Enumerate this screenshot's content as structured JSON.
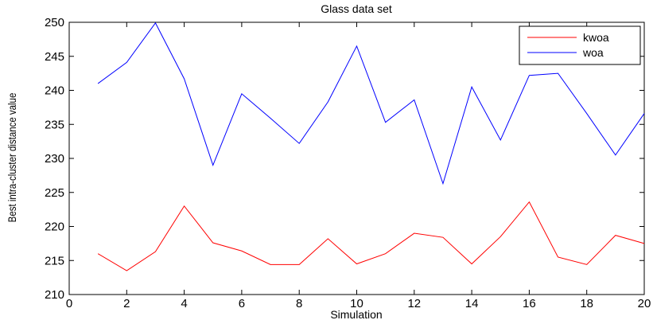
{
  "chart_data": {
    "type": "line",
    "title": "Glass data set",
    "xlabel": "Simulation",
    "ylabel": "Best intra-cluster distance value",
    "xlim": [
      0,
      20
    ],
    "ylim": [
      210,
      250
    ],
    "xticks": [
      0,
      2,
      4,
      6,
      8,
      10,
      12,
      14,
      16,
      18,
      20
    ],
    "yticks": [
      210,
      215,
      220,
      225,
      230,
      235,
      240,
      245,
      250
    ],
    "grid": false,
    "legend_position": "top-right",
    "x": [
      1,
      2,
      3,
      4,
      5,
      6,
      7,
      8,
      9,
      10,
      11,
      12,
      13,
      14,
      15,
      16,
      17,
      18,
      19,
      20
    ],
    "series": [
      {
        "name": "kwoa",
        "color": "#ff0000",
        "values": [
          216.0,
          213.5,
          216.3,
          223.0,
          217.6,
          216.4,
          214.4,
          214.4,
          218.2,
          214.5,
          216.0,
          219.0,
          218.4,
          214.5,
          218.5,
          223.6,
          215.5,
          214.4,
          218.7,
          217.5
        ]
      },
      {
        "name": "woa",
        "color": "#0000ff",
        "values": [
          241.0,
          244.1,
          249.9,
          241.7,
          229.0,
          239.5,
          235.9,
          232.2,
          238.3,
          246.5,
          235.3,
          238.6,
          226.3,
          240.5,
          232.7,
          242.2,
          242.5,
          236.6,
          230.5,
          236.6
        ]
      }
    ]
  }
}
